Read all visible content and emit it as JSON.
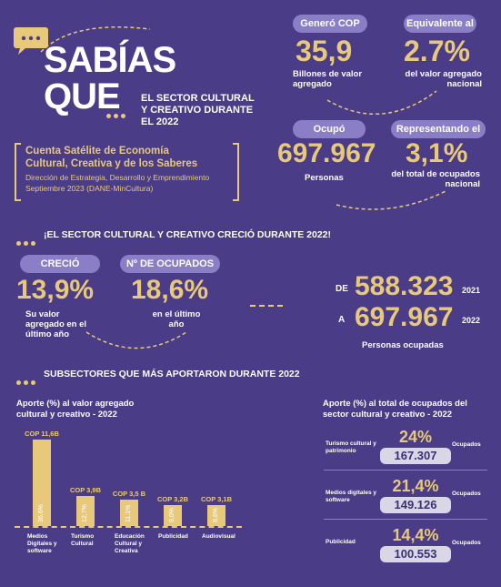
{
  "header": {
    "sabias": "SABÍAS",
    "que": "QUE",
    "subtitle_line1": "EL SECTOR CULTURAL",
    "subtitle_line2": "Y CREATIVO DURANTE",
    "subtitle_line3": "EL 2022"
  },
  "source": {
    "title_line1": "Cuenta Satélite de Economía",
    "title_line2": "Cultural, Creativa y de los Saberes",
    "line3": "Dirección de Estrategia, Desarrollo y Emprendimiento",
    "line4": "Septiembre 2023 (DANE-MinCultura)"
  },
  "top_stats": {
    "genero_label": "Generó COP",
    "genero_value": "35,9",
    "genero_caption": "Billones de valor agregado",
    "equiv_label": "Equivalente al",
    "equiv_value": "2.7%",
    "equiv_caption": "del valor agregado nacional",
    "ocupo_label": "Ocupó",
    "ocupo_value": "697.967",
    "ocupo_caption": "Personas",
    "repr_label": "Representando el",
    "repr_value": "3,1%",
    "repr_caption": "del total de ocupados nacional"
  },
  "growth": {
    "title": "¡EL SECTOR CULTURAL Y CREATIVO CRECIÓ DURANTE 2022!",
    "crecio_label": "CRECIÓ",
    "crecio_value": "13,9%",
    "crecio_caption": "Su valor agregado en el último año",
    "ocup_label": "Nº DE OCUPADOS",
    "ocup_value": "18,6%",
    "ocup_caption": "en el último año",
    "de": "DE",
    "from_value": "588.323",
    "from_year": "2021",
    "a": "A",
    "to_value": "697.967",
    "to_year": "2022",
    "persons": "Personas ocupadas"
  },
  "subsectors": {
    "title": "SUBSECTORES QUE MÁS APORTARON DURANTE 2022",
    "left_title": "Aporte (%) al valor agregado cultural y creativo - 2022",
    "right_title": "Aporte (%) al total de ocupados del sector cultural y creativo - 2022"
  },
  "chart_data": {
    "type": "bar",
    "title": "Aporte (%) al valor agregado cultural y creativo - 2022",
    "categories": [
      "Medios Digitales y software",
      "Turismo Cultural",
      "Educación Cultural y Creativa",
      "Publicidad",
      "Audiovisual"
    ],
    "values": [
      36.6,
      12.7,
      11.1,
      9.0,
      8.8
    ],
    "value_labels": [
      "36,6%",
      "12,7%",
      "11,1%",
      "9,0%",
      "8,8%"
    ],
    "cop_labels": [
      "COP 11,6B",
      "COP 3,9B",
      "COP 3,5 B",
      "COP 3,2B",
      "COP 3,1B"
    ],
    "ylim": [
      0,
      40
    ]
  },
  "occupation_rows": [
    {
      "label": "Turismo cultural y patrimonio",
      "pct": "24%",
      "count": "167.307",
      "unit": "Ocupados"
    },
    {
      "label": "Medios digitales y software",
      "pct": "21,4%",
      "count": "149.126",
      "unit": "Ocupados"
    },
    {
      "label": "Publicidad",
      "pct": "14,4%",
      "count": "100.553",
      "unit": "Ocupados"
    }
  ],
  "colors": {
    "background": "#4a3c86",
    "accent": "#e8c97a",
    "pill": "#8a7fc6"
  }
}
